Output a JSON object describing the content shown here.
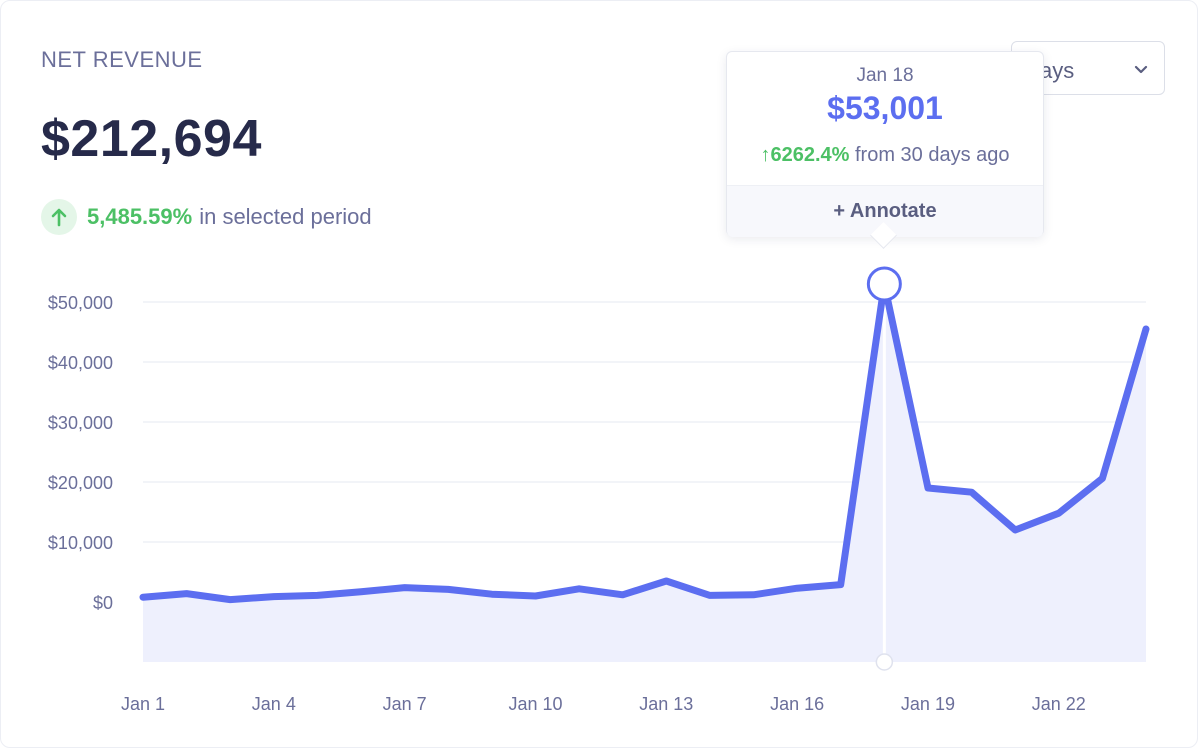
{
  "header": {
    "title": "NET REVENUE",
    "total": "$212,694",
    "change_pct": "5,485.59%",
    "change_suffix": "in selected period"
  },
  "period_select": {
    "value": "ays"
  },
  "tooltip": {
    "date": "Jan 18",
    "value": "$53,001",
    "change_pct": "6262.4%",
    "change_suffix": "from 30 days ago",
    "annotate_label": "+ Annotate"
  },
  "colors": {
    "line": "#5c6ef0",
    "area": "#eef0fd",
    "positive": "#4cc065",
    "text": "#6b6f9a",
    "grid": "#eef0f6"
  },
  "chart_data": {
    "type": "area",
    "title": "NET REVENUE",
    "xlabel": "",
    "ylabel": "",
    "ylim": [
      -10000,
      50000
    ],
    "yticks": [
      0,
      10000,
      20000,
      30000,
      40000,
      50000
    ],
    "ytick_labels": [
      "$0",
      "$10,000",
      "$20,000",
      "$30,000",
      "$40,000",
      "$50,000"
    ],
    "x": [
      "Jan 1",
      "Jan 2",
      "Jan 3",
      "Jan 4",
      "Jan 5",
      "Jan 6",
      "Jan 7",
      "Jan 8",
      "Jan 9",
      "Jan 10",
      "Jan 11",
      "Jan 12",
      "Jan 13",
      "Jan 14",
      "Jan 15",
      "Jan 16",
      "Jan 17",
      "Jan 18",
      "Jan 19",
      "Jan 20",
      "Jan 21",
      "Jan 22",
      "Jan 23",
      "Jan 24"
    ],
    "xtick_labels": [
      "Jan 1",
      "Jan 4",
      "Jan 7",
      "Jan 10",
      "Jan 13",
      "Jan 16",
      "Jan 19",
      "Jan 22"
    ],
    "series": [
      {
        "name": "Net revenue",
        "values": [
          800,
          1400,
          400,
          900,
          1100,
          1700,
          2400,
          2100,
          1300,
          1000,
          2200,
          1200,
          3500,
          1100,
          1200,
          2300,
          2900,
          53001,
          19000,
          18300,
          12000,
          14800,
          20600,
          45500
        ]
      }
    ],
    "highlight_index": 17,
    "grid": true
  }
}
